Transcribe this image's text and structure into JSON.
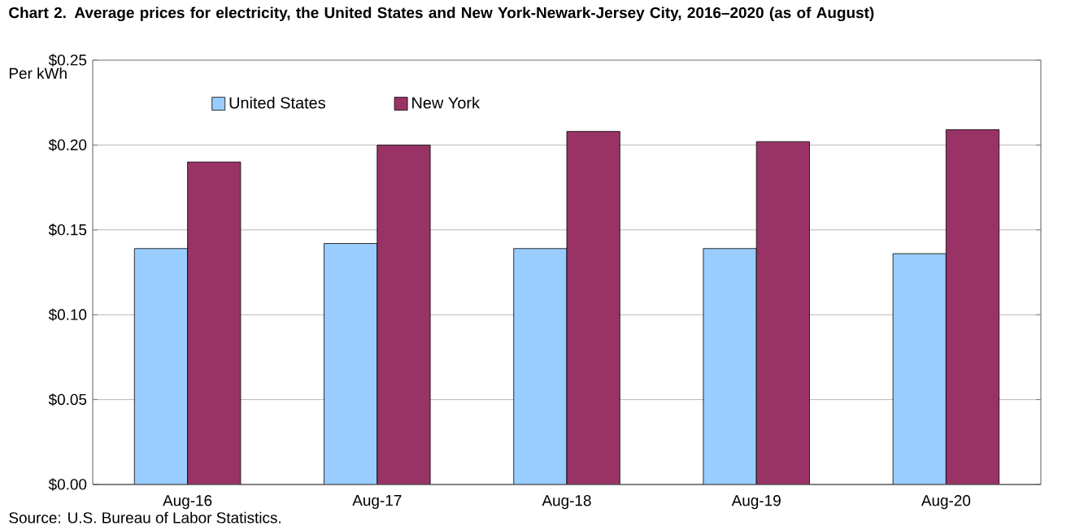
{
  "chart_data": {
    "type": "bar",
    "title": "Chart 2. Average prices for electricity, the United States and New York-Newark-Jersey  City, 2016–2020  (as of August)",
    "ylabel": "Per kWh",
    "categories": [
      "Aug-16",
      "Aug-17",
      "Aug-18",
      "Aug-19",
      "Aug-20"
    ],
    "series": [
      {
        "name": "United States",
        "color": "#99ccff",
        "values": [
          0.139,
          0.142,
          0.139,
          0.139,
          0.136
        ]
      },
      {
        "name": "New York",
        "color": "#993366",
        "values": [
          0.19,
          0.2,
          0.208,
          0.202,
          0.209
        ]
      }
    ],
    "ylim": [
      0,
      0.25
    ],
    "yticks": [
      {
        "value": 0,
        "label": "$0.00"
      },
      {
        "value": 0.05,
        "label": "$0.05"
      },
      {
        "value": 0.1,
        "label": "$0.10"
      },
      {
        "value": 0.15,
        "label": "$0.15"
      },
      {
        "value": 0.2,
        "label": "$0.20"
      },
      {
        "value": 0.25,
        "label": "$0.25"
      }
    ],
    "grid": "y",
    "legend": "top left",
    "annotations": [
      "Source: U.S. Bureau of Labor Statistics."
    ]
  }
}
